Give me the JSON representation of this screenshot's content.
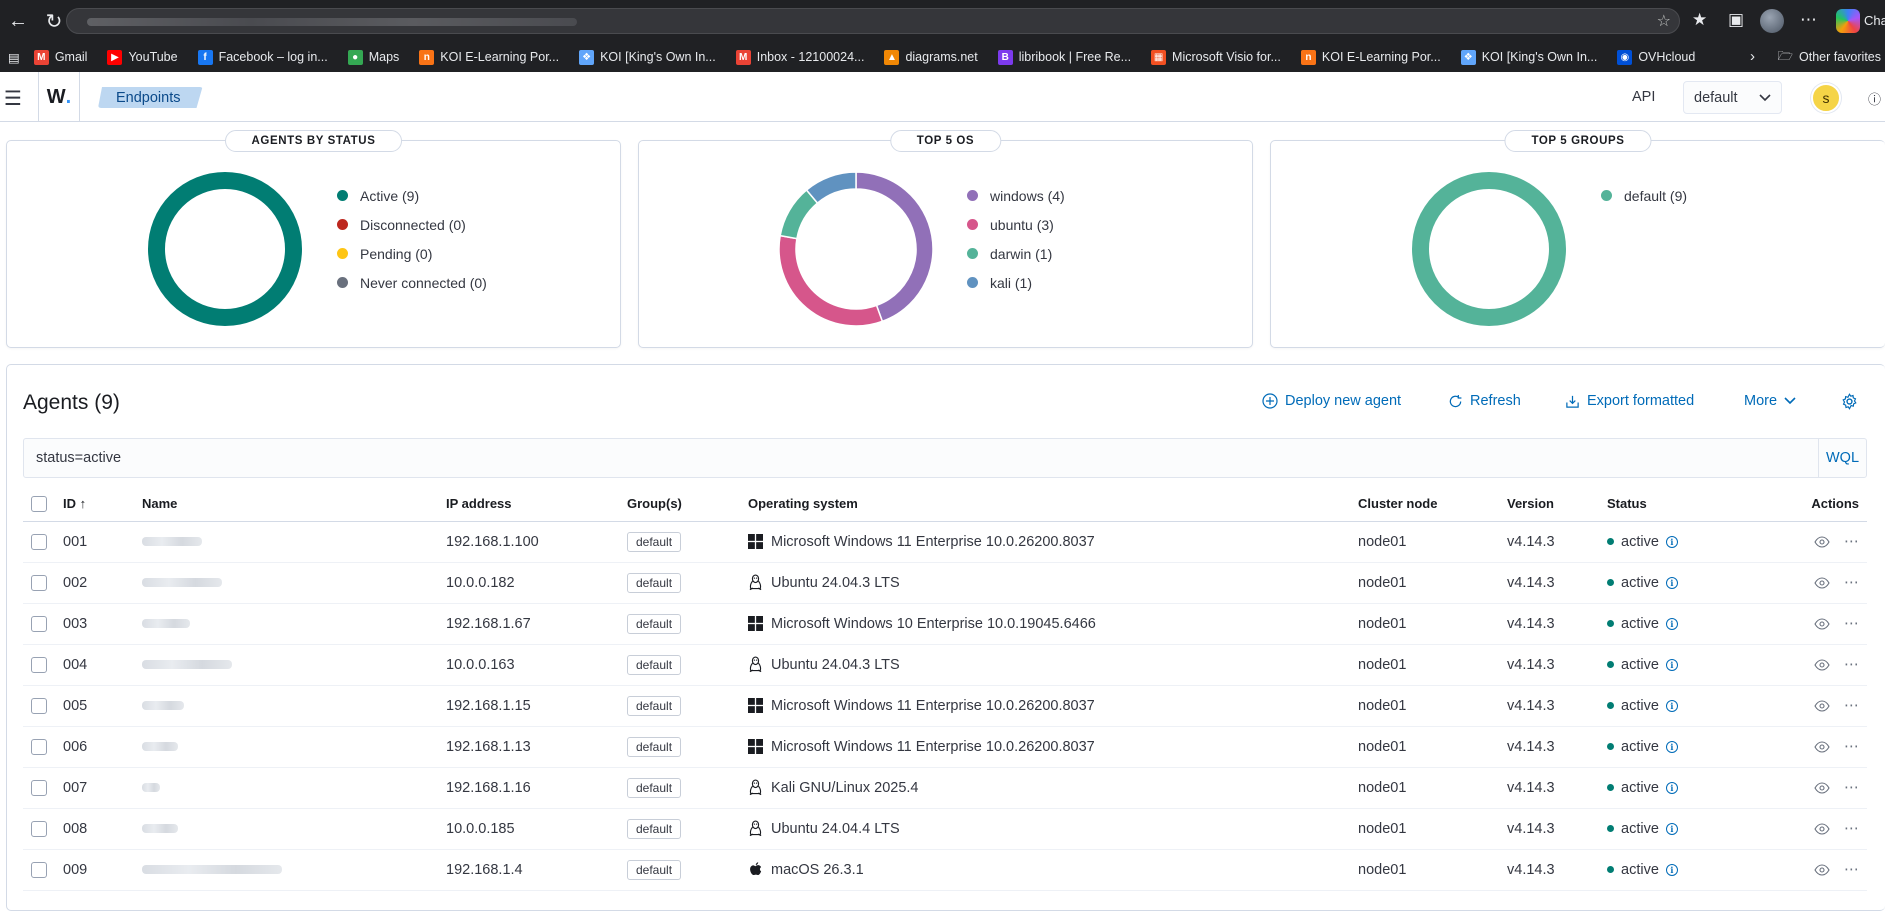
{
  "browser": {
    "copilot_label": "Cha",
    "bookmarks": [
      {
        "label": "Gmail",
        "icon": "gmail-icon",
        "color": "#ea4335"
      },
      {
        "label": "YouTube",
        "icon": "youtube-icon",
        "color": "#ff0000"
      },
      {
        "label": "Facebook – log in...",
        "icon": "facebook-icon",
        "color": "#1877f2"
      },
      {
        "label": "Maps",
        "icon": "maps-icon",
        "color": "#34a853"
      },
      {
        "label": "KOI E-Learning Por...",
        "icon": "koi-elearning-icon",
        "color": "#f97316"
      },
      {
        "label": "KOI [King's Own In...",
        "icon": "koi-icon",
        "color": "#60a5fa"
      },
      {
        "label": "Inbox - 12100024...",
        "icon": "gmail-icon",
        "color": "#ea4335"
      },
      {
        "label": "diagrams.net",
        "icon": "diagrams-icon",
        "color": "#f08705"
      },
      {
        "label": "libribook | Free Re...",
        "icon": "libribook-icon",
        "color": "#7c3aed"
      },
      {
        "label": "Microsoft Visio for...",
        "icon": "microsoft-icon",
        "color": "#f25022"
      },
      {
        "label": "KOI E-Learning Por...",
        "icon": "koi-elearning-icon",
        "color": "#f97316"
      },
      {
        "label": "KOI [King's Own In...",
        "icon": "koi-icon",
        "color": "#60a5fa"
      },
      {
        "label": "OVHcloud",
        "icon": "ovhcloud-icon",
        "color": "#0050d7"
      }
    ],
    "other_favorites": "Other favorites"
  },
  "header": {
    "logo": "W",
    "breadcrumb": "Endpoints",
    "api_label": "API",
    "tenant": "default",
    "user_initial": "s"
  },
  "panels": {
    "status": {
      "title": "AGENTS BY STATUS",
      "legend": [
        {
          "label": "Active (9)",
          "color": "#017d73"
        },
        {
          "label": "Disconnected (0)",
          "color": "#bd271e"
        },
        {
          "label": "Pending (0)",
          "color": "#fec514"
        },
        {
          "label": "Never connected (0)",
          "color": "#69707d"
        }
      ]
    },
    "os": {
      "title": "TOP 5 OS",
      "legend": [
        {
          "label": "windows (4)",
          "color": "#9170b8"
        },
        {
          "label": "ubuntu (3)",
          "color": "#d6568b"
        },
        {
          "label": "darwin (1)",
          "color": "#54b399"
        },
        {
          "label": "kali (1)",
          "color": "#6092c0"
        }
      ]
    },
    "groups": {
      "title": "TOP 5 GROUPS",
      "legend": [
        {
          "label": "default (9)",
          "color": "#54b399"
        }
      ]
    }
  },
  "chart_data": [
    {
      "type": "pie",
      "title": "AGENTS BY STATUS",
      "categories": [
        "Active",
        "Disconnected",
        "Pending",
        "Never connected"
      ],
      "values": [
        9,
        0,
        0,
        0
      ]
    },
    {
      "type": "pie",
      "title": "TOP 5 OS",
      "categories": [
        "windows",
        "ubuntu",
        "darwin",
        "kali"
      ],
      "values": [
        4,
        3,
        1,
        1
      ]
    },
    {
      "type": "pie",
      "title": "TOP 5 GROUPS",
      "categories": [
        "default"
      ],
      "values": [
        9
      ]
    }
  ],
  "agents": {
    "title": "Agents (9)",
    "actions": {
      "deploy": "Deploy new agent",
      "refresh": "Refresh",
      "export": "Export formatted",
      "more": "More"
    },
    "search": {
      "value": "status=active",
      "wql": "WQL"
    },
    "columns": {
      "id": "ID",
      "name": "Name",
      "ip": "IP address",
      "groups": "Group(s)",
      "os": "Operating system",
      "node": "Cluster node",
      "version": "Version",
      "status": "Status",
      "actions": "Actions"
    },
    "rows": [
      {
        "id": "001",
        "ip": "192.168.1.100",
        "group": "default",
        "os": "Microsoft Windows 11 Enterprise 10.0.26200.8037",
        "os_icon": "windows-icon",
        "node": "node01",
        "version": "v4.14.3",
        "status": "active"
      },
      {
        "id": "002",
        "ip": "10.0.0.182",
        "group": "default",
        "os": "Ubuntu 24.04.3 LTS",
        "os_icon": "linux-icon",
        "node": "node01",
        "version": "v4.14.3",
        "status": "active"
      },
      {
        "id": "003",
        "ip": "192.168.1.67",
        "group": "default",
        "os": "Microsoft Windows 10 Enterprise 10.0.19045.6466",
        "os_icon": "windows-icon",
        "node": "node01",
        "version": "v4.14.3",
        "status": "active"
      },
      {
        "id": "004",
        "ip": "10.0.0.163",
        "group": "default",
        "os": "Ubuntu 24.04.3 LTS",
        "os_icon": "linux-icon",
        "node": "node01",
        "version": "v4.14.3",
        "status": "active"
      },
      {
        "id": "005",
        "ip": "192.168.1.15",
        "group": "default",
        "os": "Microsoft Windows 11 Enterprise 10.0.26200.8037",
        "os_icon": "windows-icon",
        "node": "node01",
        "version": "v4.14.3",
        "status": "active"
      },
      {
        "id": "006",
        "ip": "192.168.1.13",
        "group": "default",
        "os": "Microsoft Windows 11 Enterprise 10.0.26200.8037",
        "os_icon": "windows-icon",
        "node": "node01",
        "version": "v4.14.3",
        "status": "active"
      },
      {
        "id": "007",
        "ip": "192.168.1.16",
        "group": "default",
        "os": "Kali GNU/Linux 2025.4",
        "os_icon": "linux-icon",
        "node": "node01",
        "version": "v4.14.3",
        "status": "active"
      },
      {
        "id": "008",
        "ip": "10.0.0.185",
        "group": "default",
        "os": "Ubuntu 24.04.4 LTS",
        "os_icon": "linux-icon",
        "node": "node01",
        "version": "v4.14.3",
        "status": "active"
      },
      {
        "id": "009",
        "ip": "192.168.1.4",
        "group": "default",
        "os": "macOS 26.3.1",
        "os_icon": "apple-icon",
        "node": "node01",
        "version": "v4.14.3",
        "status": "active"
      }
    ]
  }
}
